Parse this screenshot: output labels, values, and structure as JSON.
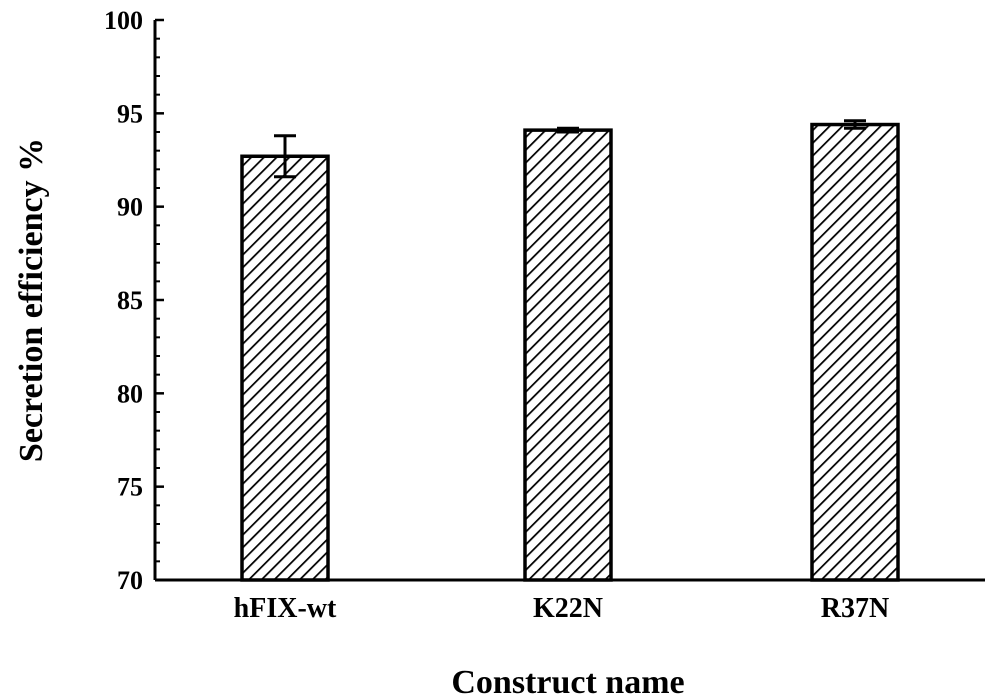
{
  "chart_data": {
    "type": "bar",
    "categories": [
      "hFIX-wt",
      "K22N",
      "R37N"
    ],
    "values": [
      92.7,
      94.1,
      94.4
    ],
    "errors": [
      1.1,
      0.1,
      0.2
    ],
    "xlabel": "Construct name",
    "ylabel": "Secretion efficiency %",
    "ylim": [
      70,
      100
    ],
    "yticks": [
      70,
      75,
      80,
      85,
      90,
      95,
      100
    ],
    "grid": false,
    "bar_fill": "hatched-diagonal",
    "colors": {
      "bar_edge": "#000000",
      "hatch": "#000000",
      "background": "#ffffff"
    }
  }
}
